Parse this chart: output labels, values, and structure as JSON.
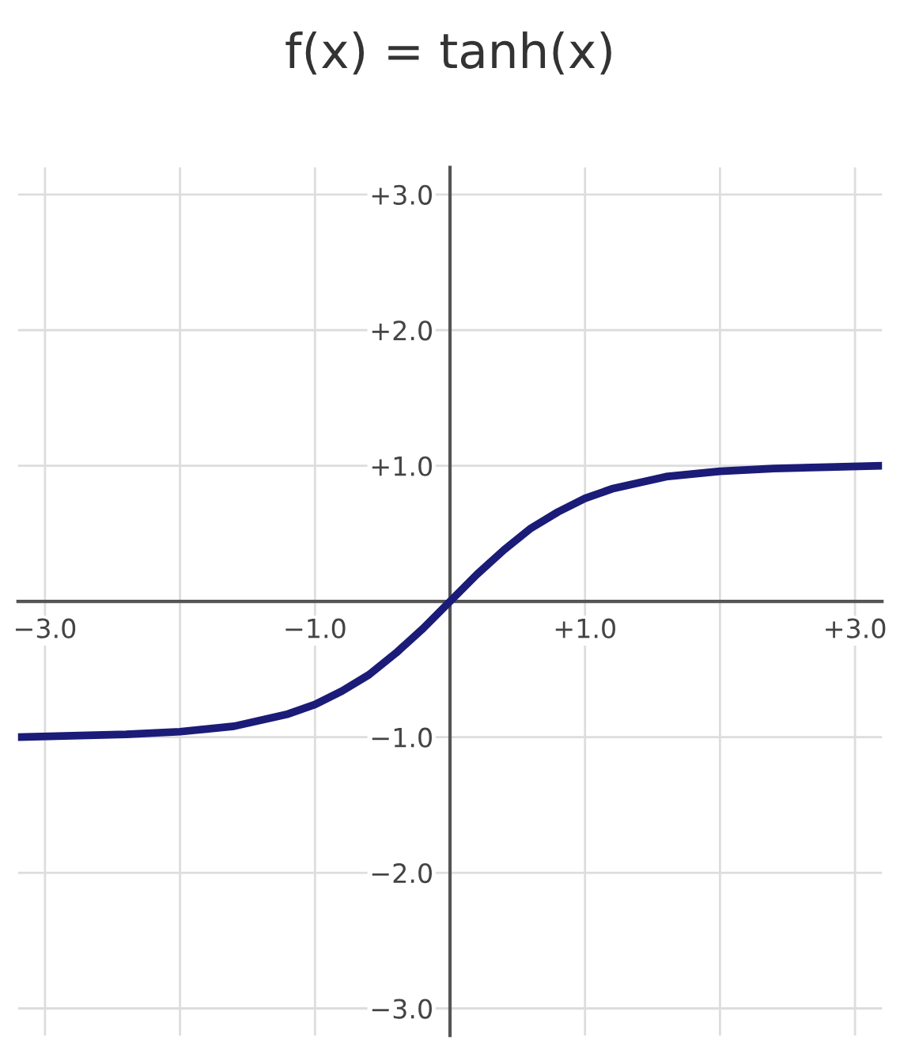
{
  "chart_data": {
    "type": "line",
    "title": "f(x) = tanh(x)",
    "series": [
      {
        "color": "#1b1b78",
        "x": [
          -3.2,
          -2.8,
          -2.4,
          -2.0,
          -1.6,
          -1.2,
          -1.0,
          -0.8,
          -0.6,
          -0.4,
          -0.2,
          0,
          0.2,
          0.4,
          0.6,
          0.8,
          1.0,
          1.2,
          1.6,
          2.0,
          2.4,
          2.8,
          3.2
        ],
        "values": [
          -1.0,
          -0.99,
          -0.98,
          -0.96,
          -0.92,
          -0.83,
          -0.76,
          -0.66,
          -0.54,
          -0.38,
          -0.2,
          0,
          0.2,
          0.38,
          0.54,
          0.66,
          0.76,
          0.83,
          0.92,
          0.96,
          0.98,
          0.99,
          1.0
        ]
      }
    ],
    "xlim": [
      -3.2,
      3.2
    ],
    "ylim": [
      -3.2,
      3.2
    ],
    "xticks": [
      {
        "value": -3,
        "label": "−3.0"
      },
      {
        "value": -2,
        "label": null
      },
      {
        "value": -1,
        "label": "−1.0"
      },
      {
        "value": 1,
        "label": "+1.0"
      },
      {
        "value": 2,
        "label": null
      },
      {
        "value": 3,
        "label": "+3.0"
      }
    ],
    "yticks": [
      {
        "value": -3,
        "label": "−3.0"
      },
      {
        "value": -2,
        "label": "−2.0"
      },
      {
        "value": -1,
        "label": "−1.0"
      },
      {
        "value": 1,
        "label": "+1.0"
      },
      {
        "value": 2,
        "label": "+2.0"
      },
      {
        "value": 3,
        "label": "+3.0"
      }
    ],
    "grid": true,
    "marker": "none",
    "line_style": "solid",
    "legend": false
  }
}
